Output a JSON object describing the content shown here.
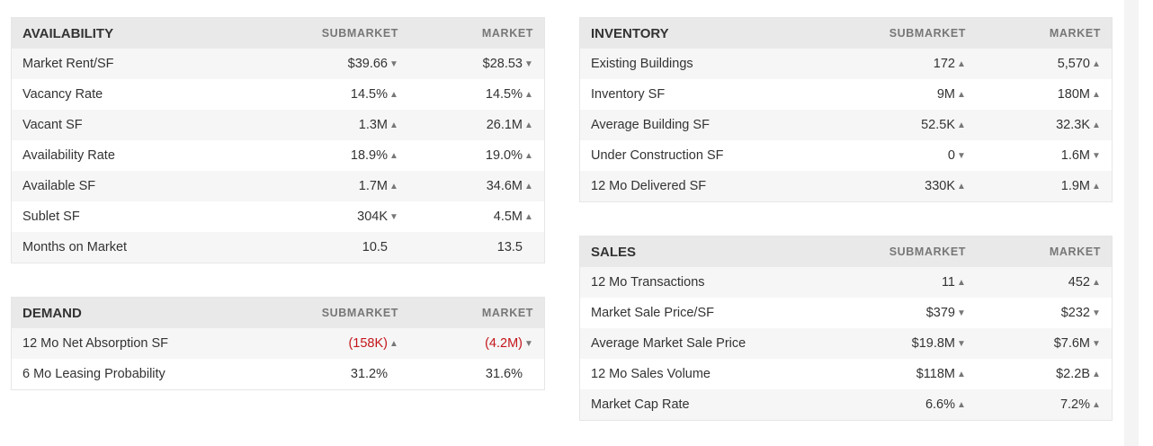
{
  "glyphs": {
    "up": "▲",
    "down": "▼"
  },
  "availability": {
    "title": "AVAILABILITY",
    "col_sub": "SUBMARKET",
    "col_mkt": "MARKET",
    "rows": [
      {
        "label": "Market Rent/SF",
        "sub": "$39.66",
        "sub_dir": "down",
        "mkt": "$28.53",
        "mkt_dir": "down"
      },
      {
        "label": "Vacancy Rate",
        "sub": "14.5%",
        "sub_dir": "up",
        "mkt": "14.5%",
        "mkt_dir": "up"
      },
      {
        "label": "Vacant SF",
        "sub": "1.3M",
        "sub_dir": "up",
        "mkt": "26.1M",
        "mkt_dir": "up"
      },
      {
        "label": "Availability Rate",
        "sub": "18.9%",
        "sub_dir": "up",
        "mkt": "19.0%",
        "mkt_dir": "up"
      },
      {
        "label": "Available SF",
        "sub": "1.7M",
        "sub_dir": "up",
        "mkt": "34.6M",
        "mkt_dir": "up"
      },
      {
        "label": "Sublet SF",
        "sub": "304K",
        "sub_dir": "down",
        "mkt": "4.5M",
        "mkt_dir": "up"
      },
      {
        "label": "Months on Market",
        "sub": "10.5",
        "sub_dir": "",
        "mkt": "13.5",
        "mkt_dir": ""
      }
    ]
  },
  "demand": {
    "title": "DEMAND",
    "col_sub": "SUBMARKET",
    "col_mkt": "MARKET",
    "rows": [
      {
        "label": "12 Mo Net Absorption SF",
        "sub": "(158K)",
        "sub_dir": "up",
        "sub_neg": true,
        "mkt": "(4.2M)",
        "mkt_dir": "down",
        "mkt_neg": true
      },
      {
        "label": "6 Mo Leasing Probability",
        "sub": "31.2%",
        "sub_dir": "",
        "mkt": "31.6%",
        "mkt_dir": ""
      }
    ]
  },
  "inventory": {
    "title": "INVENTORY",
    "col_sub": "SUBMARKET",
    "col_mkt": "MARKET",
    "rows": [
      {
        "label": "Existing Buildings",
        "sub": "172",
        "sub_dir": "up",
        "mkt": "5,570",
        "mkt_dir": "up"
      },
      {
        "label": "Inventory SF",
        "sub": "9M",
        "sub_dir": "up",
        "mkt": "180M",
        "mkt_dir": "up"
      },
      {
        "label": "Average Building SF",
        "sub": "52.5K",
        "sub_dir": "up",
        "mkt": "32.3K",
        "mkt_dir": "up"
      },
      {
        "label": "Under Construction SF",
        "sub": "0",
        "sub_dir": "down",
        "mkt": "1.6M",
        "mkt_dir": "down"
      },
      {
        "label": "12 Mo Delivered SF",
        "sub": "330K",
        "sub_dir": "up",
        "mkt": "1.9M",
        "mkt_dir": "up"
      }
    ]
  },
  "sales": {
    "title": "SALES",
    "col_sub": "SUBMARKET",
    "col_mkt": "MARKET",
    "rows": [
      {
        "label": "12 Mo Transactions",
        "sub": "11",
        "sub_dir": "up",
        "mkt": "452",
        "mkt_dir": "up"
      },
      {
        "label": "Market Sale Price/SF",
        "sub": "$379",
        "sub_dir": "down",
        "mkt": "$232",
        "mkt_dir": "down"
      },
      {
        "label": "Average Market Sale Price",
        "sub": "$19.8M",
        "sub_dir": "down",
        "mkt": "$7.6M",
        "mkt_dir": "down"
      },
      {
        "label": "12 Mo Sales Volume",
        "sub": "$118M",
        "sub_dir": "up",
        "mkt": "$2.2B",
        "mkt_dir": "up"
      },
      {
        "label": "Market Cap Rate",
        "sub": "6.6%",
        "sub_dir": "up",
        "mkt": "7.2%",
        "mkt_dir": "up"
      }
    ]
  }
}
